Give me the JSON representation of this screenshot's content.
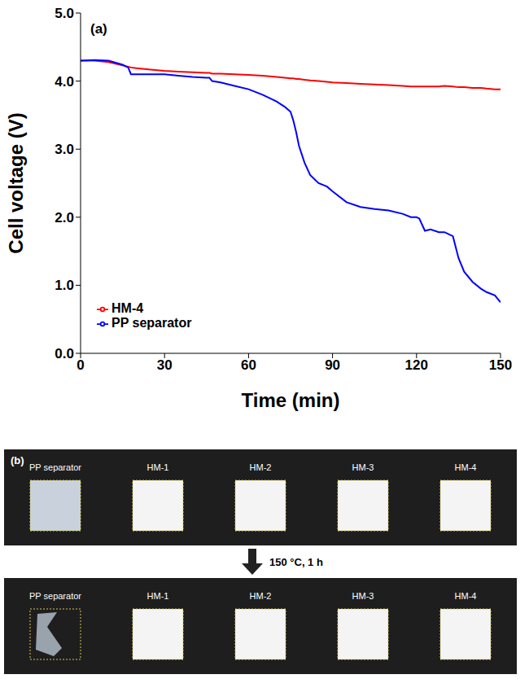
{
  "chart_data": {
    "type": "line",
    "title": "(a)",
    "x_label": "Time (min)",
    "y_label": "Cell voltage (V)",
    "x": [
      0,
      5,
      10,
      15,
      17,
      18,
      20,
      25,
      30,
      35,
      40,
      45,
      46,
      47,
      50,
      55,
      60,
      65,
      70,
      73,
      75,
      76,
      77,
      78,
      80,
      82,
      85,
      88,
      90,
      95,
      100,
      105,
      110,
      115,
      118,
      120,
      121,
      123,
      125,
      128,
      130,
      133,
      135,
      137,
      140,
      143,
      145,
      148,
      150
    ],
    "series": [
      {
        "name": "HM-4",
        "color": "#ff0000",
        "values": [
          4.3,
          4.3,
          4.28,
          4.23,
          4.21,
          4.2,
          4.19,
          4.17,
          4.15,
          4.14,
          4.13,
          4.12,
          4.12,
          4.11,
          4.11,
          4.1,
          4.09,
          4.08,
          4.06,
          4.05,
          4.04,
          4.04,
          4.03,
          4.03,
          4.02,
          4.01,
          4.0,
          3.99,
          3.98,
          3.97,
          3.96,
          3.95,
          3.94,
          3.93,
          3.92,
          3.92,
          3.92,
          3.92,
          3.92,
          3.92,
          3.93,
          3.92,
          3.91,
          3.91,
          3.9,
          3.9,
          3.89,
          3.88,
          3.88
        ]
      },
      {
        "name": "PP separator",
        "color": "#0000ff",
        "values": [
          4.3,
          4.31,
          4.3,
          4.24,
          4.2,
          4.1,
          4.1,
          4.1,
          4.1,
          4.08,
          4.06,
          4.05,
          4.05,
          4.0,
          3.98,
          3.93,
          3.88,
          3.8,
          3.7,
          3.62,
          3.55,
          3.42,
          3.25,
          3.05,
          2.8,
          2.62,
          2.5,
          2.45,
          2.38,
          2.22,
          2.15,
          2.12,
          2.1,
          2.05,
          2.0,
          2.0,
          1.98,
          1.8,
          1.82,
          1.78,
          1.78,
          1.72,
          1.4,
          1.2,
          1.05,
          0.95,
          0.9,
          0.85,
          0.75
        ]
      }
    ],
    "xlim": [
      0,
      150
    ],
    "xticks": [
      0,
      30,
      60,
      90,
      120,
      150
    ],
    "ylim": [
      0,
      5
    ],
    "yticks": [
      {
        "value": 0,
        "label": "0.0"
      },
      {
        "value": 1,
        "label": "1.0"
      },
      {
        "value": 2,
        "label": "2.0"
      },
      {
        "value": 3,
        "label": "3.0"
      },
      {
        "value": 4,
        "label": "4.0"
      },
      {
        "value": 5,
        "label": "5.0"
      }
    ],
    "legend": "lower left",
    "grid": false
  },
  "photo_panel": {
    "label": "(b)",
    "treatment": "150 °C, 1 h",
    "rows": [
      {
        "samples": [
          "PP separator",
          "HM-1",
          "HM-2",
          "HM-3",
          "HM-4"
        ]
      },
      {
        "samples": [
          "PP separator",
          "HM-1",
          "HM-2",
          "HM-3",
          "HM-4"
        ]
      }
    ]
  }
}
